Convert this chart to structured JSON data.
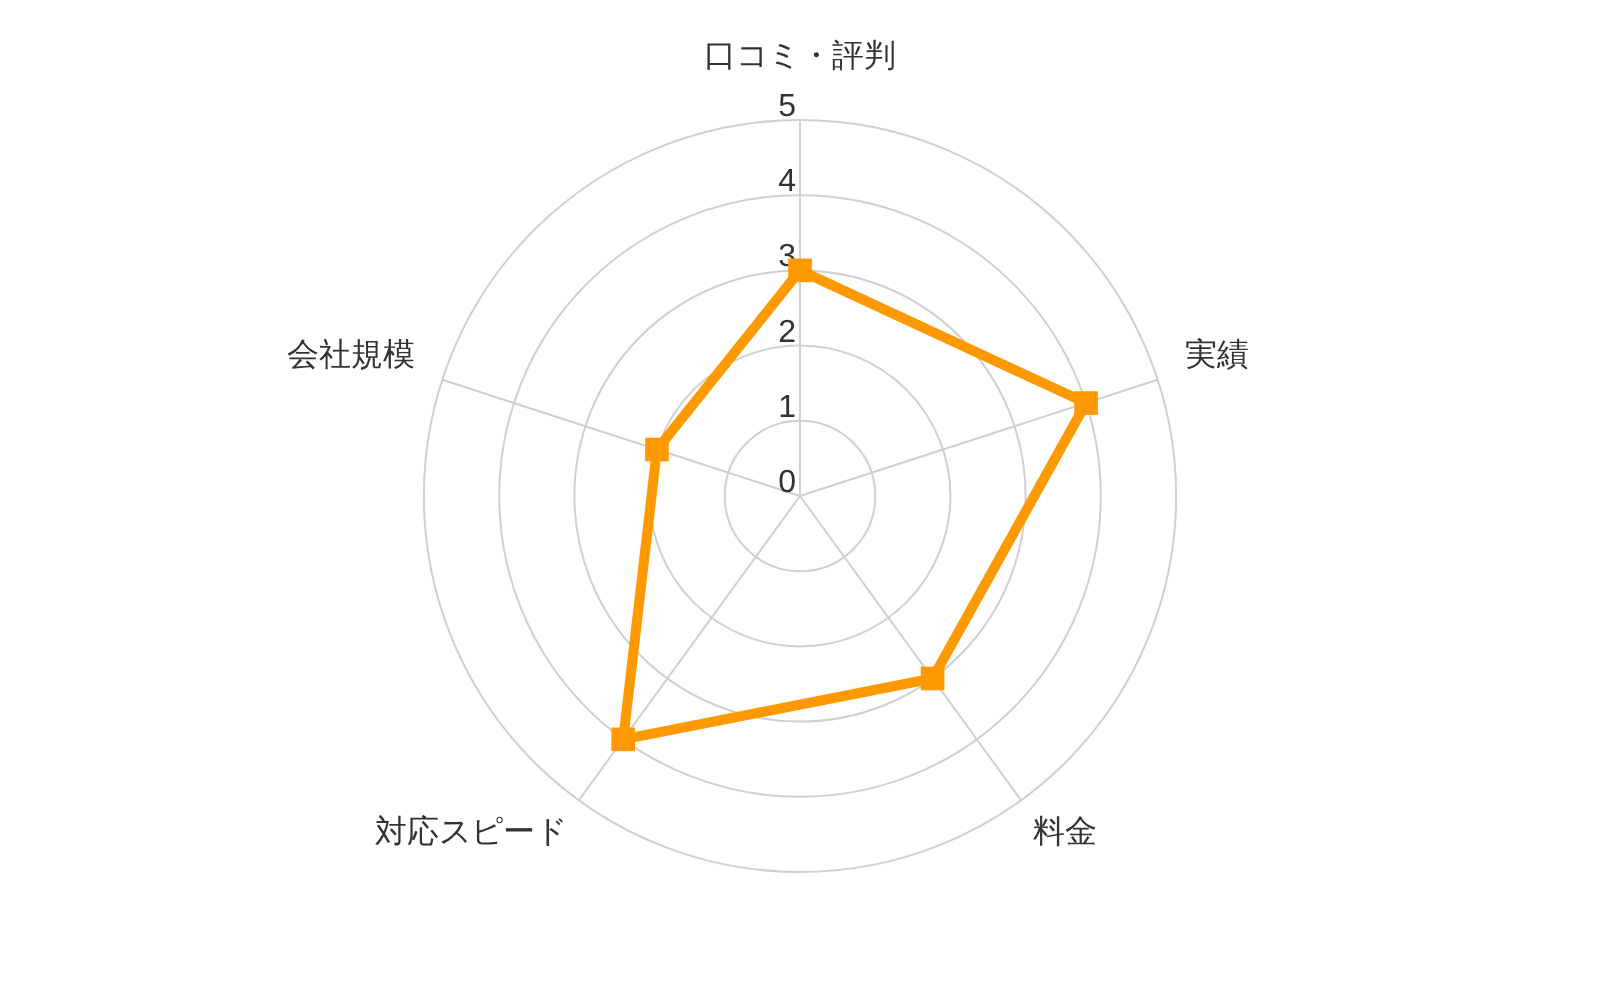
{
  "chart_data": {
    "type": "radar",
    "categories": [
      "口コミ・評判",
      "実績",
      "料金",
      "対応スピード",
      "会社規模"
    ],
    "series": [
      {
        "color": "#ff9900",
        "values": [
          3,
          4,
          3,
          4,
          2
        ]
      }
    ],
    "ylim": [
      0,
      5
    ],
    "yticks": [
      0,
      1,
      2,
      3,
      4,
      5
    ],
    "grid": true,
    "marker": "square"
  }
}
